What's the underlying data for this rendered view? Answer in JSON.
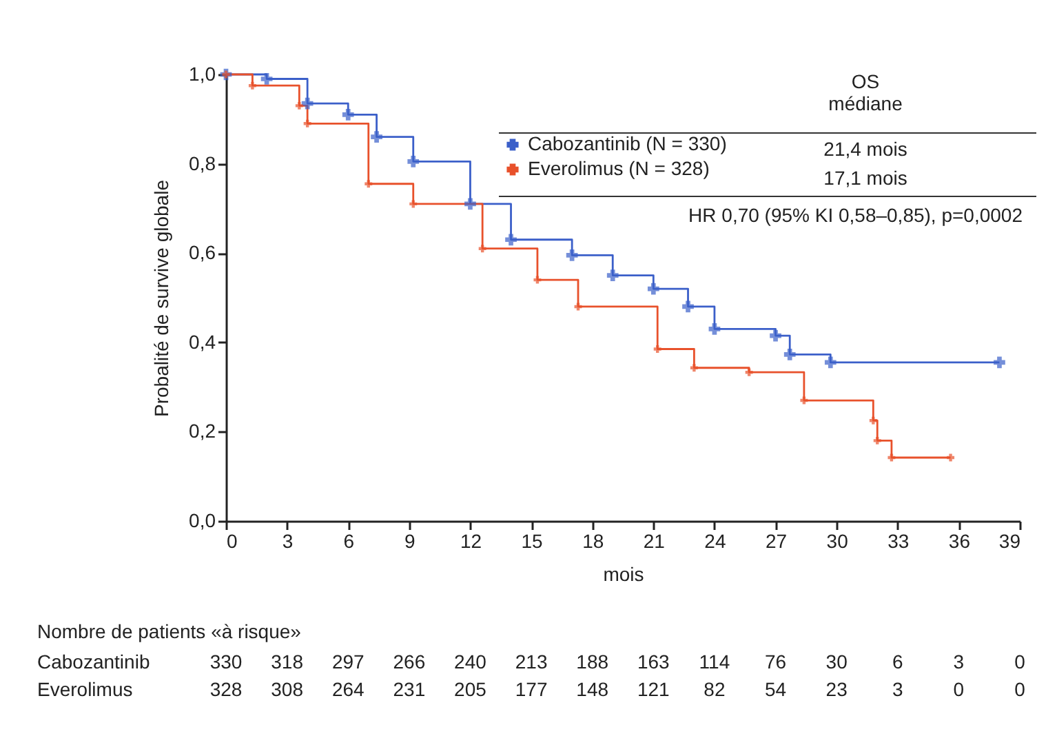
{
  "chart_data": {
    "type": "step",
    "xlabel": "mois",
    "ylabel": "Probalité de survive globale",
    "series": [
      {
        "name": "Cabozantinib (N = 330)",
        "color": "#3b5fc9",
        "x": [
          0,
          2,
          4,
          6,
          7.4,
          9.2,
          12,
          14,
          17,
          19,
          21,
          22.7,
          24,
          27,
          27.7,
          29.7,
          38
        ],
        "values": [
          1.0,
          0.99,
          0.935,
          0.91,
          0.86,
          0.805,
          0.71,
          0.63,
          0.595,
          0.55,
          0.52,
          0.48,
          0.43,
          0.415,
          0.373,
          0.355,
          0.355
        ]
      },
      {
        "name": "Everolimus (N = 328)",
        "color": "#e8512b",
        "x": [
          0,
          1.3,
          3.6,
          4,
          7,
          9.2,
          12.6,
          15.3,
          17.3,
          21.2,
          23,
          25.7,
          28.4,
          31.8,
          32,
          32.7,
          35.6
        ],
        "values": [
          1.0,
          0.975,
          0.93,
          0.89,
          0.755,
          0.71,
          0.61,
          0.54,
          0.48,
          0.385,
          0.343,
          0.333,
          0.27,
          0.225,
          0.18,
          0.142,
          0.142
        ]
      }
    ],
    "xlim": [
      0,
      39
    ],
    "xticks": [
      0,
      3,
      6,
      9,
      12,
      15,
      18,
      21,
      24,
      27,
      30,
      33,
      36,
      39
    ],
    "ylim": [
      0,
      1
    ],
    "yticks": [
      {
        "value": 0,
        "label": "0,0"
      },
      {
        "value": 0.2,
        "label": "0,2"
      },
      {
        "value": 0.4,
        "label": "0,4"
      },
      {
        "value": 0.6,
        "label": "0,6"
      },
      {
        "value": 0.8,
        "label": "0,8"
      },
      {
        "value": 1,
        "label": "1,0"
      }
    ],
    "legend": "top right",
    "marker": "cross",
    "grid": false,
    "annotations": [
      "OS",
      "médiane",
      "21,4 mois",
      "17,1 mois",
      "HR 0,70 (95% KI 0,58–0,85), p=0,0002",
      "Nombre de patients «à risque»",
      "Cabozantinib",
      "330",
      "318",
      "297",
      "266",
      "240",
      "213",
      "188",
      "163",
      "114",
      "76",
      "30",
      "6",
      "3",
      "0",
      "Everolimus",
      "328",
      "308",
      "264",
      "231",
      "205",
      "177",
      "148",
      "121",
      "82",
      "54",
      "23",
      "3",
      "0",
      "0"
    ]
  }
}
